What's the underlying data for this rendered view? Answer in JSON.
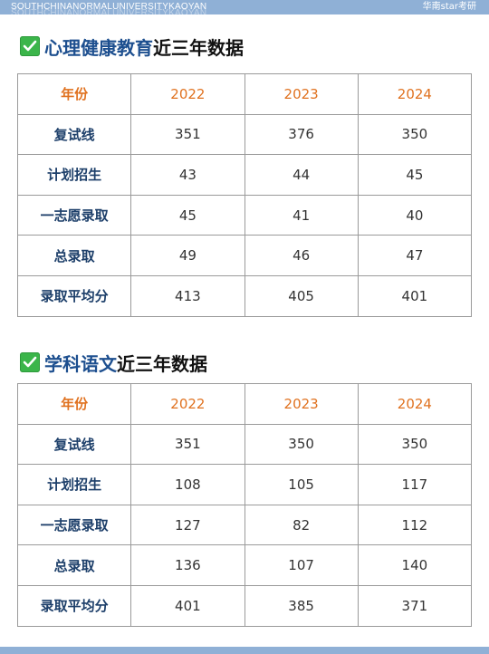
{
  "header": {
    "brand_en": "SOUTHCHINANORMALUNIVERSITYKAOYAN",
    "brand_cn": "华南star考研"
  },
  "sections": [
    {
      "title_blue": "心理健康教育",
      "title_black": "近三年数据",
      "header_row": [
        "年份",
        "2022",
        "2023",
        "2024"
      ],
      "rows": [
        {
          "label": "复试线",
          "values": [
            "351",
            "376",
            "350"
          ]
        },
        {
          "label": "计划招生",
          "values": [
            "43",
            "44",
            "45"
          ]
        },
        {
          "label": "一志愿录取",
          "values": [
            "45",
            "41",
            "40"
          ]
        },
        {
          "label": "总录取",
          "values": [
            "49",
            "46",
            "47"
          ]
        },
        {
          "label": "录取平均分",
          "values": [
            "413",
            "405",
            "401"
          ]
        }
      ]
    },
    {
      "title_blue": "学科语文",
      "title_black": "近三年数据",
      "header_row": [
        "年份",
        "2022",
        "2023",
        "2024"
      ],
      "rows": [
        {
          "label": "复试线",
          "values": [
            "351",
            "350",
            "350"
          ]
        },
        {
          "label": "计划招生",
          "values": [
            "108",
            "105",
            "117"
          ]
        },
        {
          "label": "一志愿录取",
          "values": [
            "127",
            "82",
            "112"
          ]
        },
        {
          "label": "总录取",
          "values": [
            "136",
            "107",
            "140"
          ]
        },
        {
          "label": "录取平均分",
          "values": [
            "401",
            "385",
            "371"
          ]
        }
      ]
    }
  ],
  "colors": {
    "accent_blue": "#1d4f8f",
    "header_orange": "#e07220",
    "check_green": "#3bb54a",
    "bar_blue": "#8fb0d6"
  }
}
